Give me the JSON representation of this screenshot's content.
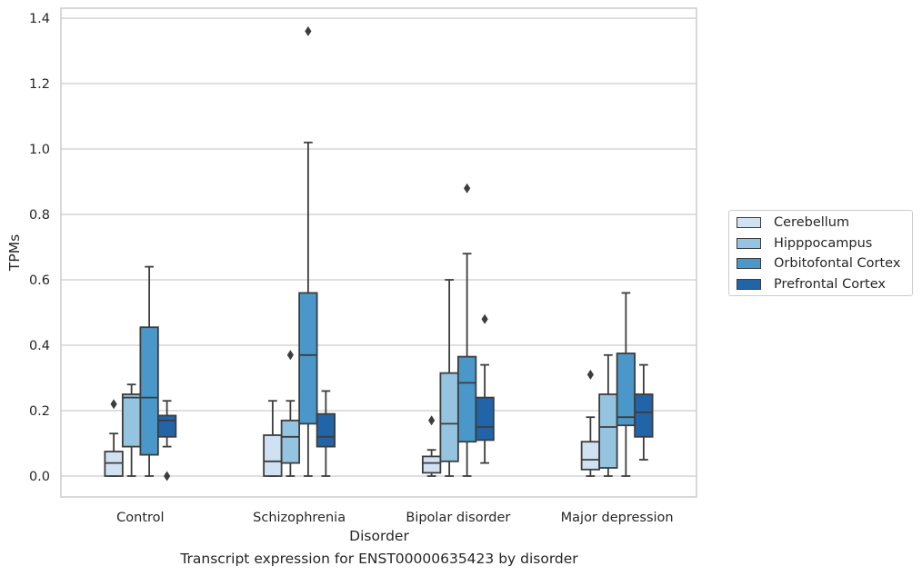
{
  "caption": "Transcript expression for ENST00000635423 by disorder",
  "chart_data": {
    "type": "box",
    "xlabel": "Disorder",
    "ylabel": "TPMs",
    "ylim": [
      -0.065,
      1.43
    ],
    "yticks": [
      "0.0",
      "0.2",
      "0.4",
      "0.6",
      "0.8",
      "1.0",
      "1.2",
      "1.4"
    ],
    "ytick_values": [
      0.0,
      0.2,
      0.4,
      0.6,
      0.8,
      1.0,
      1.2,
      1.4
    ],
    "grid": true,
    "legend_position": "right",
    "categories": [
      "Control",
      "Schizophrenia",
      "Bipolar disorder",
      "Major depression"
    ],
    "series": [
      {
        "name": "Cerebellum",
        "color": "#d0e1f2",
        "boxes": [
          {
            "whisker_low": 0.0,
            "q1": 0.0,
            "median": 0.04,
            "q3": 0.075,
            "whisker_high": 0.13,
            "outliers": [
              0.22
            ]
          },
          {
            "whisker_low": 0.0,
            "q1": 0.0,
            "median": 0.045,
            "q3": 0.125,
            "whisker_high": 0.23,
            "outliers": []
          },
          {
            "whisker_low": 0.0,
            "q1": 0.01,
            "median": 0.04,
            "q3": 0.06,
            "whisker_high": 0.08,
            "outliers": [
              0.17
            ]
          },
          {
            "whisker_low": 0.0,
            "q1": 0.02,
            "median": 0.05,
            "q3": 0.105,
            "whisker_high": 0.18,
            "outliers": [
              0.31
            ]
          }
        ]
      },
      {
        "name": "Hipppocampus",
        "color": "#94c4df",
        "boxes": [
          {
            "whisker_low": 0.0,
            "q1": 0.09,
            "median": 0.24,
            "q3": 0.25,
            "whisker_high": 0.28,
            "outliers": []
          },
          {
            "whisker_low": 0.0,
            "q1": 0.04,
            "median": 0.12,
            "q3": 0.17,
            "whisker_high": 0.23,
            "outliers": [
              0.37
            ]
          },
          {
            "whisker_low": 0.0,
            "q1": 0.045,
            "median": 0.16,
            "q3": 0.315,
            "whisker_high": 0.6,
            "outliers": []
          },
          {
            "whisker_low": 0.0,
            "q1": 0.025,
            "median": 0.15,
            "q3": 0.25,
            "whisker_high": 0.37,
            "outliers": []
          }
        ]
      },
      {
        "name": "Orbitofontal Cortex",
        "color": "#4a98c9",
        "boxes": [
          {
            "whisker_low": 0.0,
            "q1": 0.065,
            "median": 0.24,
            "q3": 0.455,
            "whisker_high": 0.64,
            "outliers": []
          },
          {
            "whisker_low": 0.0,
            "q1": 0.16,
            "median": 0.37,
            "q3": 0.56,
            "whisker_high": 1.02,
            "outliers": [
              1.36
            ]
          },
          {
            "whisker_low": 0.0,
            "q1": 0.105,
            "median": 0.285,
            "q3": 0.365,
            "whisker_high": 0.68,
            "outliers": [
              0.88
            ]
          },
          {
            "whisker_low": 0.0,
            "q1": 0.155,
            "median": 0.18,
            "q3": 0.375,
            "whisker_high": 0.56,
            "outliers": []
          }
        ]
      },
      {
        "name": "Prefrontal Cortex",
        "color": "#2264a8",
        "boxes": [
          {
            "whisker_low": 0.09,
            "q1": 0.12,
            "median": 0.17,
            "q3": 0.185,
            "whisker_high": 0.23,
            "outliers": [
              0.0
            ]
          },
          {
            "whisker_low": 0.0,
            "q1": 0.09,
            "median": 0.12,
            "q3": 0.19,
            "whisker_high": 0.26,
            "outliers": []
          },
          {
            "whisker_low": 0.04,
            "q1": 0.11,
            "median": 0.15,
            "q3": 0.24,
            "whisker_high": 0.34,
            "outliers": [
              0.48
            ]
          },
          {
            "whisker_low": 0.05,
            "q1": 0.12,
            "median": 0.195,
            "q3": 0.25,
            "whisker_high": 0.34,
            "outliers": []
          }
        ]
      }
    ]
  }
}
